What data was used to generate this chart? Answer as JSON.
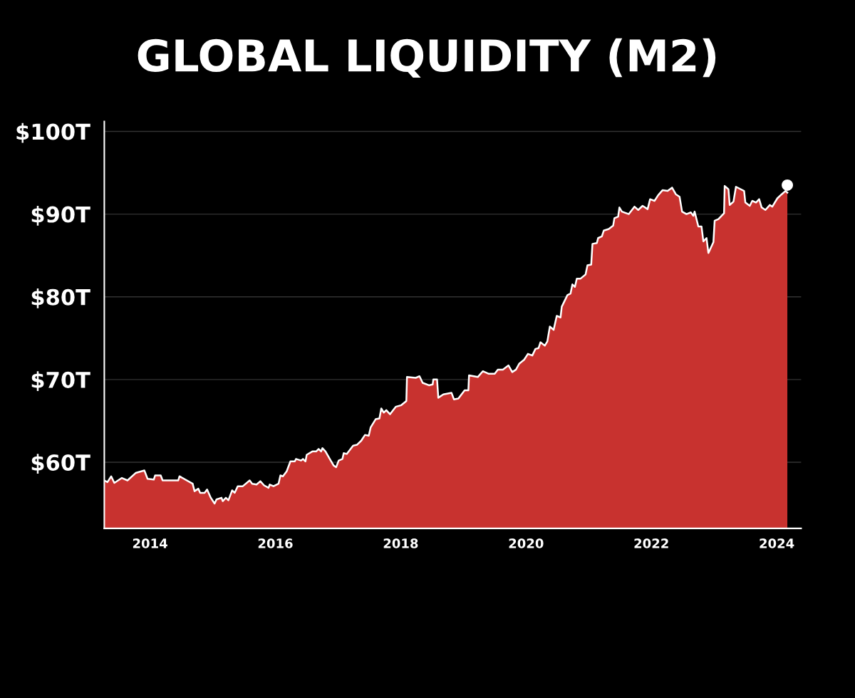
{
  "chart_data": {
    "type": "area",
    "title": "GLOBAL LIQUIDITY (M2)",
    "xlim": [
      2013.27,
      2024.39
    ],
    "xticks": [
      2014,
      2016,
      2018,
      2020,
      2022,
      2024
    ],
    "ylim": [
      52,
      101.2
    ],
    "yticks": [
      {
        "value": 60,
        "label": "$60T"
      },
      {
        "value": 70,
        "label": "$70T"
      },
      {
        "value": 80,
        "label": "$80T"
      },
      {
        "value": 90,
        "label": "$90T"
      },
      {
        "value": 100,
        "label": "$100T"
      }
    ],
    "grid": "y",
    "series": [
      {
        "color": "#c8322f",
        "x": [
          2013.27,
          2013.32,
          2013.38,
          2013.43,
          2013.55,
          2013.64,
          2013.77,
          2013.91,
          2013.96,
          2014.06,
          2014.08,
          2014.17,
          2014.2,
          2014.34,
          2014.45,
          2014.47,
          2014.68,
          2014.71,
          2014.77,
          2014.8,
          2014.87,
          2014.91,
          2014.97,
          2015.03,
          2015.06,
          2015.14,
          2015.16,
          2015.21,
          2015.25,
          2015.31,
          2015.35,
          2015.4,
          2015.48,
          2015.59,
          2015.63,
          2015.7,
          2015.76,
          2015.82,
          2015.89,
          2015.91,
          2015.97,
          2016.05,
          2016.08,
          2016.12,
          2016.18,
          2016.24,
          2016.31,
          2016.33,
          2016.41,
          2016.44,
          2016.48,
          2016.5,
          2016.59,
          2016.65,
          2016.69,
          2016.73,
          2016.75,
          2016.8,
          2016.86,
          2016.93,
          2016.97,
          2017.01,
          2017.07,
          2017.09,
          2017.14,
          2017.24,
          2017.3,
          2017.37,
          2017.43,
          2017.49,
          2017.52,
          2017.6,
          2017.66,
          2017.69,
          2017.73,
          2017.77,
          2017.83,
          2017.92,
          2018.01,
          2018.09,
          2018.1,
          2018.24,
          2018.3,
          2018.35,
          2018.45,
          2018.51,
          2018.52,
          2018.58,
          2018.6,
          2018.68,
          2018.81,
          2018.85,
          2018.92,
          2019.02,
          2019.08,
          2019.09,
          2019.23,
          2019.31,
          2019.4,
          2019.5,
          2019.55,
          2019.63,
          2019.72,
          2019.78,
          2019.84,
          2019.89,
          2019.97,
          2020.03,
          2020.1,
          2020.15,
          2020.2,
          2020.23,
          2020.3,
          2020.34,
          2020.38,
          2020.44,
          2020.49,
          2020.55,
          2020.57,
          2020.66,
          2020.71,
          2020.74,
          2020.78,
          2020.81,
          2020.87,
          2020.95,
          2020.98,
          2021.04,
          2021.06,
          2021.13,
          2021.15,
          2021.21,
          2021.24,
          2021.32,
          2021.39,
          2021.41,
          2021.47,
          2021.49,
          2021.53,
          2021.64,
          2021.73,
          2021.79,
          2021.86,
          2021.94,
          2021.98,
          2022.05,
          2022.11,
          2022.18,
          2022.26,
          2022.33,
          2022.39,
          2022.45,
          2022.49,
          2022.56,
          2022.63,
          2022.67,
          2022.69,
          2022.75,
          2022.8,
          2022.83,
          2022.88,
          2022.91,
          2022.99,
          2023.01,
          2023.07,
          2023.16,
          2023.17,
          2023.23,
          2023.25,
          2023.31,
          2023.35,
          2023.48,
          2023.5,
          2023.57,
          2023.61,
          2023.67,
          2023.72,
          2023.76,
          2023.82,
          2023.89,
          2023.93,
          2024.01,
          2024.08,
          2024.14,
          2024.17
        ],
        "values": [
          57.8,
          57.6,
          58.3,
          57.5,
          58.1,
          57.8,
          58.7,
          59.0,
          58.0,
          57.9,
          58.4,
          58.4,
          57.8,
          57.8,
          57.8,
          58.3,
          57.4,
          56.5,
          56.8,
          56.3,
          56.3,
          56.7,
          55.7,
          55.0,
          55.5,
          55.7,
          55.3,
          55.7,
          55.4,
          56.6,
          56.3,
          57.1,
          57.1,
          57.8,
          57.4,
          57.3,
          57.7,
          57.2,
          56.9,
          57.3,
          57.1,
          57.4,
          58.4,
          58.3,
          58.9,
          60.1,
          60.1,
          60.4,
          60.2,
          60.4,
          60.1,
          60.9,
          61.3,
          61.3,
          61.6,
          61.3,
          61.7,
          61.3,
          60.5,
          59.6,
          59.4,
          60.2,
          60.4,
          61.1,
          61.0,
          62.0,
          62.1,
          62.6,
          63.3,
          63.2,
          64.2,
          65.2,
          65.3,
          66.5,
          66.0,
          66.3,
          65.8,
          66.7,
          66.9,
          67.4,
          70.3,
          70.2,
          70.4,
          69.6,
          69.3,
          69.4,
          70.0,
          70.0,
          67.8,
          68.2,
          68.4,
          67.6,
          67.7,
          68.7,
          68.7,
          70.5,
          70.3,
          71.0,
          70.7,
          70.7,
          71.2,
          71.2,
          71.7,
          70.9,
          71.2,
          71.9,
          72.4,
          73.1,
          72.9,
          73.7,
          73.8,
          74.5,
          74.1,
          74.6,
          76.4,
          76.0,
          77.7,
          77.5,
          78.8,
          80.2,
          80.4,
          81.5,
          81.2,
          82.2,
          82.2,
          82.7,
          83.8,
          83.9,
          86.4,
          86.5,
          87.1,
          87.3,
          88.0,
          88.2,
          88.6,
          89.5,
          89.7,
          90.8,
          90.3,
          90.0,
          90.9,
          90.5,
          91.0,
          90.6,
          91.8,
          91.6,
          92.3,
          92.9,
          92.8,
          93.2,
          92.4,
          92.1,
          90.3,
          90.0,
          90.2,
          89.8,
          90.3,
          88.5,
          88.5,
          86.7,
          87.1,
          85.3,
          86.6,
          89.2,
          89.4,
          90.1,
          93.4,
          93.0,
          91.1,
          91.5,
          93.3,
          92.8,
          91.4,
          91.0,
          91.6,
          91.4,
          91.8,
          90.8,
          90.5,
          91.1,
          90.9,
          91.9,
          92.4,
          92.8,
          92.6
        ]
      },
      {
        "type": "scatter",
        "color": "#ffffff",
        "marker": "circle",
        "x": [
          2024.17
        ],
        "values": [
          93.5
        ]
      }
    ]
  }
}
